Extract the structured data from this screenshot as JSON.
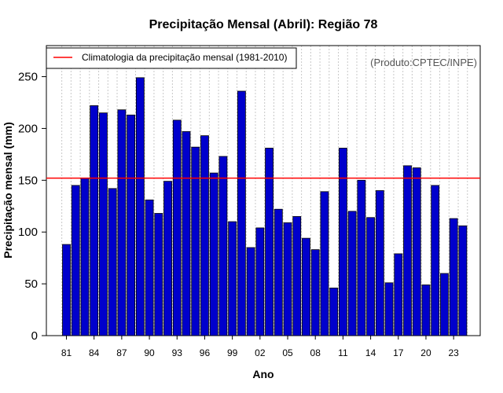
{
  "chart_data": {
    "type": "bar",
    "title": "Precipitação Mensal (Abril): Região 78",
    "xlabel": "Ano",
    "ylabel": "Precipitação mensal (mm)",
    "source_note": "(Produto:CPTEC/INPE)",
    "ylim": [
      0,
      280
    ],
    "yticks": [
      0,
      50,
      100,
      150,
      200,
      250
    ],
    "grid": "vertical dotted",
    "legend_position": "top-left",
    "categories": [
      "81",
      "82",
      "83",
      "84",
      "85",
      "86",
      "87",
      "88",
      "89",
      "90",
      "91",
      "92",
      "93",
      "94",
      "95",
      "96",
      "97",
      "98",
      "99",
      "00",
      "01",
      "02",
      "03",
      "04",
      "05",
      "06",
      "07",
      "08",
      "09",
      "10",
      "11",
      "12",
      "13",
      "14",
      "15",
      "16",
      "17",
      "18",
      "19",
      "20",
      "21",
      "22",
      "23",
      "24"
    ],
    "xtick_labels": [
      "81",
      "84",
      "87",
      "90",
      "93",
      "96",
      "99",
      "02",
      "05",
      "08",
      "11",
      "14",
      "17",
      "20",
      "23"
    ],
    "series": [
      {
        "name": "Precipitação mensal",
        "color": "#0000cc",
        "values": [
          88,
          145,
          152,
          222,
          215,
          142,
          218,
          213,
          249,
          131,
          118,
          149,
          208,
          197,
          182,
          193,
          157,
          173,
          110,
          236,
          85,
          104,
          181,
          122,
          109,
          115,
          94,
          83,
          139,
          46,
          181,
          120,
          150,
          114,
          140,
          51,
          79,
          164,
          162,
          49,
          145,
          60,
          113,
          106
        ]
      }
    ],
    "reference_line": {
      "label": "Climatologia da precipitação mensal (1981-2010)",
      "value": 152,
      "color": "#ff0000"
    }
  }
}
